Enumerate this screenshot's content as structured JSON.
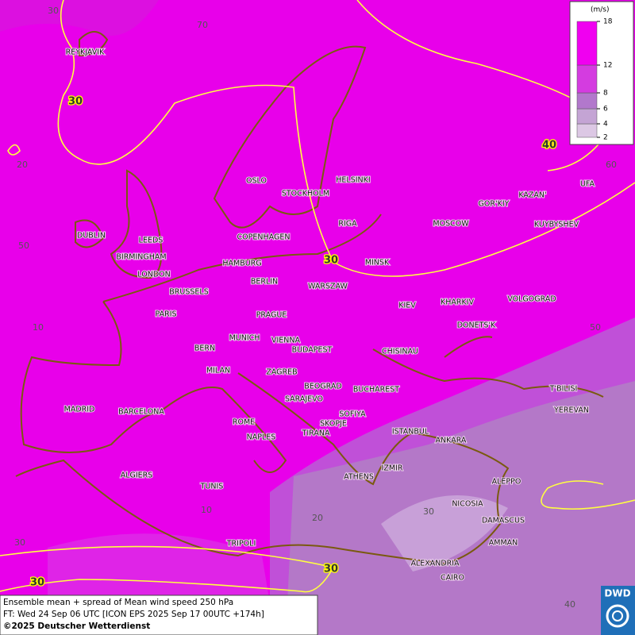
{
  "map": {
    "cities": [
      "REYKJAVIK",
      "OSLO",
      "STOCKHOLM",
      "HELSINKI",
      "RIGA",
      "MOSCOW",
      "GOR'KIY",
      "KAZAN'",
      "UFA",
      "KUYBYSHEV",
      "DUBLIN",
      "LEEDS",
      "BIRMINGHAM",
      "LONDON",
      "COPENHAGEN",
      "HAMBURG",
      "BERLIN",
      "MINSK",
      "WARSZAW",
      "BRUSSELS",
      "KIEV",
      "KHARKIV",
      "VOLGOGRAD",
      "PARIS",
      "PRAGUE",
      "DONETS'K",
      "MUNICH",
      "VIENNA",
      "BERN",
      "BUDAPEST",
      "CHISINAU",
      "MILAN",
      "ZAGREB",
      "BEOGRAD",
      "BUCHAREST",
      "T'BILISI",
      "MADRID",
      "BARCELONA",
      "SARAJEVO",
      "SOFIYA",
      "YEREVAN",
      "ROME",
      "SKOPJE",
      "TIRANA",
      "ISTANBUL",
      "ANKARA",
      "NAPLES",
      "ALGIERS",
      "ATHENS",
      "IZMIR",
      "ALEPPO",
      "TUNIS",
      "NICOSIA",
      "DAMASCUS",
      "TRIPOLI",
      "AMMAN",
      "ALEXANDRIA",
      "CAIRO"
    ],
    "contour_labels": [
      30,
      40,
      30,
      30,
      30
    ],
    "grid_labels": [
      30,
      70,
      20,
      60,
      50,
      10,
      50,
      20,
      30,
      10,
      30,
      40
    ]
  },
  "legend": {
    "unit": "(m/s)",
    "levels": [
      2,
      4,
      6,
      8,
      12,
      18
    ],
    "colors": [
      "#dcc8e4",
      "#c4a4d4",
      "#b278cc",
      "#d43ce0",
      "#f000f0"
    ]
  },
  "footer": {
    "lines": [
      "Ensemble mean + spread of Mean wind speed 250 hPa",
      "FT: Wed 24 Sep 06 UTC [ICON EPS 2025 Sep 17 00UTC +174h]",
      "©2025 Deutscher Wetterdienst"
    ],
    "logo": "DWD"
  }
}
